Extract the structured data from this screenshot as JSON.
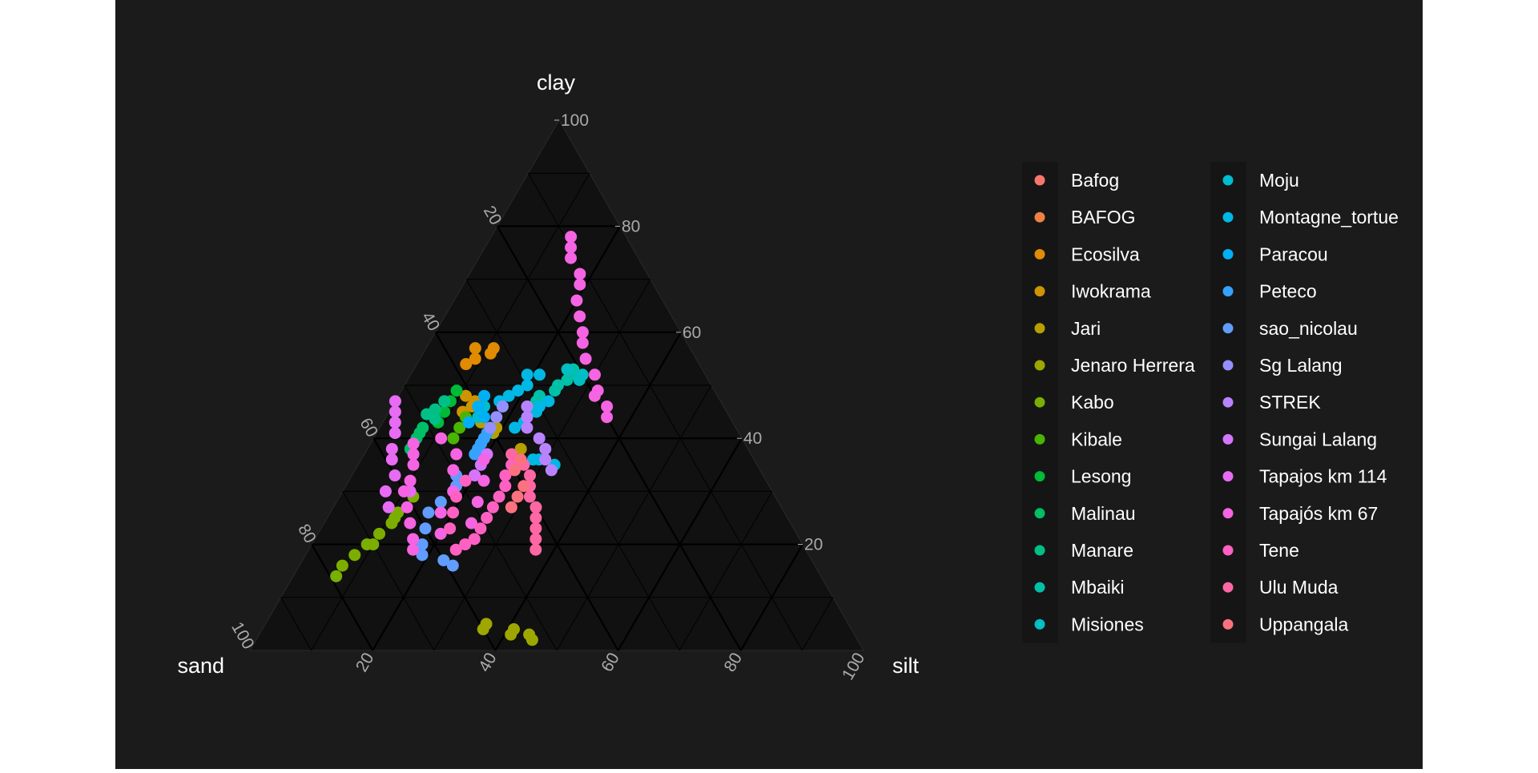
{
  "chart_data": {
    "type": "scatter",
    "subtype": "ternary",
    "axes": {
      "top": "clay",
      "left": "sand",
      "right": "silt"
    },
    "ticks": [
      20,
      40,
      60,
      80,
      100
    ],
    "grid": true,
    "grid_minor_step": 10,
    "legend_position": "right",
    "legend_columns": 2,
    "theme": {
      "background": "#1b1b1b",
      "panel": "#111111",
      "text": "#ffffff",
      "tick_text": "#aaaaaa"
    },
    "series": [
      {
        "name": "Bafog",
        "color": "#F8766D",
        "points": []
      },
      {
        "name": "BAFOG",
        "color": "#EE8044",
        "points": []
      },
      {
        "name": "Ecosilva",
        "color": "#E08B00",
        "points": [
          [
            57,
            35,
            8
          ],
          [
            56,
            33,
            11
          ],
          [
            55,
            36,
            9
          ],
          [
            54,
            38,
            8
          ],
          [
            57,
            32,
            11
          ]
        ]
      },
      {
        "name": "Iwokrama",
        "color": "#CE9500",
        "points": [
          [
            46,
            41,
            13
          ],
          [
            47,
            40,
            13
          ],
          [
            48,
            41,
            11
          ],
          [
            45,
            43,
            12
          ]
        ]
      },
      {
        "name": "Jari",
        "color": "#B79F00",
        "points": [
          [
            38,
            37,
            25
          ],
          [
            41,
            40,
            19
          ],
          [
            39,
            43,
            18
          ],
          [
            40,
            42,
            18
          ],
          [
            42,
            39,
            19
          ],
          [
            43,
            41,
            16
          ]
        ]
      },
      {
        "name": "Jenaro Herrera",
        "color": "#9DA700",
        "points": [
          [
            3,
            53,
            44
          ],
          [
            3,
            56,
            41
          ],
          [
            2,
            53,
            45
          ],
          [
            4,
            55,
            41
          ],
          [
            5,
            59,
            36
          ],
          [
            4,
            60,
            36
          ]
        ]
      },
      {
        "name": "Kabo",
        "color": "#7CAE00",
        "points": [
          [
            14,
            79,
            7
          ],
          [
            16,
            77,
            7
          ],
          [
            18,
            74,
            8
          ],
          [
            20,
            71,
            9
          ],
          [
            22,
            68,
            10
          ],
          [
            24,
            65,
            11
          ],
          [
            26,
            63,
            11
          ],
          [
            29,
            59,
            12
          ],
          [
            25,
            64,
            11
          ],
          [
            20,
            70,
            10
          ]
        ]
      },
      {
        "name": "Kibale",
        "color": "#49B500",
        "points": [
          [
            40,
            47,
            13
          ],
          [
            42,
            45,
            13
          ],
          [
            44,
            43,
            13
          ]
        ]
      },
      {
        "name": "Lesong",
        "color": "#00BA38",
        "points": [
          [
            43,
            48,
            9
          ],
          [
            45,
            46,
            9
          ],
          [
            47,
            44,
            9
          ],
          [
            49,
            42,
            9
          ]
        ]
      },
      {
        "name": "Malinau",
        "color": "#00BE67",
        "points": [
          [
            38,
            55,
            7
          ],
          [
            39,
            54,
            7
          ],
          [
            40,
            53,
            7
          ],
          [
            41,
            52,
            7
          ],
          [
            42,
            51,
            7
          ]
        ]
      },
      {
        "name": "Manare",
        "color": "#00C088",
        "points": [
          [
            49,
            54,
            7
          ],
          [
            48,
            53,
            9
          ],
          [
            50,
            52,
            8
          ],
          [
            47,
            45,
            8
          ]
        ]
      },
      {
        "name": "Mbaiki",
        "color": "#00C1A7",
        "points": [
          [
            46,
            32,
            22
          ],
          [
            47,
            30,
            23
          ],
          [
            48,
            29,
            23
          ],
          [
            49,
            26,
            25
          ],
          [
            50,
            25,
            25
          ],
          [
            51,
            23,
            26
          ],
          [
            52,
            21,
            27
          ],
          [
            53,
            21,
            26
          ]
        ]
      },
      {
        "name": "Misiones",
        "color": "#00BFC4",
        "points": [
          [
            52,
            20,
            28
          ],
          [
            53,
            22,
            25
          ],
          [
            51,
            21,
            28
          ]
        ]
      },
      {
        "name": "Moju",
        "color": "#00BDD0",
        "points": [
          [
            44,
            41,
            15
          ],
          [
            46,
            39,
            15
          ],
          [
            45,
            40,
            15
          ]
        ]
      },
      {
        "name": "Montagne_tortue",
        "color": "#00B8E3",
        "points": [
          [
            47,
            36,
            17
          ],
          [
            48,
            34,
            18
          ],
          [
            49,
            32,
            19
          ],
          [
            50,
            30,
            20
          ],
          [
            52,
            29,
            19
          ],
          [
            52,
            27,
            21
          ],
          [
            42,
            36,
            22
          ],
          [
            43,
            34,
            23
          ],
          [
            44,
            33,
            23
          ],
          [
            45,
            31,
            24
          ],
          [
            46,
            30,
            24
          ],
          [
            47,
            28,
            25
          ],
          [
            36,
            36,
            28
          ],
          [
            36,
            35,
            29
          ],
          [
            35,
            33,
            32
          ]
        ]
      },
      {
        "name": "Paracou",
        "color": "#00B0F6",
        "points": [
          [
            44,
            40,
            16
          ],
          [
            46,
            40,
            14
          ],
          [
            48,
            38,
            14
          ],
          [
            43,
            43,
            14
          ]
        ]
      },
      {
        "name": "Peteco",
        "color": "#35A2FF",
        "points": [
          [
            37,
            45,
            18
          ],
          [
            38,
            44,
            18
          ],
          [
            39,
            43,
            18
          ],
          [
            40,
            42,
            18
          ],
          [
            41,
            41,
            18
          ]
        ]
      },
      {
        "name": "sao_nicolau",
        "color": "#619CFF",
        "points": [
          [
            33,
            50,
            17
          ],
          [
            31,
            51,
            18
          ],
          [
            28,
            55,
            17
          ],
          [
            26,
            58,
            16
          ],
          [
            23,
            60,
            17
          ],
          [
            20,
            62,
            18
          ],
          [
            18,
            63,
            19
          ],
          [
            17,
            60,
            23
          ],
          [
            16,
            59,
            25
          ]
        ]
      },
      {
        "name": "Sg Lalang",
        "color": "#9590FF",
        "points": [
          [
            42,
            40,
            18
          ],
          [
            44,
            38,
            18
          ],
          [
            46,
            36,
            18
          ]
        ]
      },
      {
        "name": "STREK",
        "color": "#B983FF",
        "points": [
          [
            40,
            33,
            27
          ],
          [
            42,
            34,
            24
          ],
          [
            44,
            33,
            23
          ],
          [
            46,
            32,
            22
          ],
          [
            38,
            33,
            29
          ],
          [
            36,
            34,
            30
          ],
          [
            34,
            34,
            32
          ]
        ]
      },
      {
        "name": "Sungai Lalang",
        "color": "#D575FE",
        "points": [
          [
            33,
            47,
            20
          ],
          [
            35,
            45,
            20
          ],
          [
            37,
            43,
            20
          ]
        ]
      },
      {
        "name": "Tapajos km 114",
        "color": "#E76BF3",
        "points": [
          [
            41,
            56,
            3
          ],
          [
            43,
            55,
            2
          ],
          [
            45,
            54,
            1
          ],
          [
            47,
            53,
            0
          ],
          [
            38,
            58,
            4
          ],
          [
            36,
            59,
            5
          ],
          [
            33,
            60,
            7
          ],
          [
            30,
            63,
            7
          ],
          [
            27,
            64,
            9
          ],
          [
            30,
            59,
            11
          ]
        ]
      },
      {
        "name": "Tapajós km 67",
        "color": "#F564E3",
        "points": [
          [
            78,
            9,
            13
          ],
          [
            76,
            10,
            14
          ],
          [
            74,
            11,
            15
          ],
          [
            71,
            11,
            18
          ],
          [
            69,
            12,
            19
          ],
          [
            66,
            14,
            20
          ],
          [
            63,
            15,
            22
          ],
          [
            60,
            16,
            24
          ],
          [
            58,
            17,
            25
          ],
          [
            55,
            18,
            27
          ],
          [
            52,
            18,
            30
          ],
          [
            49,
            19,
            32
          ],
          [
            48,
            20,
            32
          ],
          [
            46,
            19,
            35
          ],
          [
            44,
            20,
            36
          ],
          [
            39,
            54,
            7
          ],
          [
            37,
            55,
            8
          ],
          [
            35,
            56,
            9
          ],
          [
            32,
            58,
            10
          ],
          [
            30,
            60,
            10
          ],
          [
            27,
            61,
            12
          ],
          [
            24,
            62,
            14
          ],
          [
            21,
            63,
            16
          ],
          [
            19,
            64,
            17
          ],
          [
            40,
            49,
            11
          ],
          [
            37,
            48,
            15
          ],
          [
            34,
            50,
            16
          ],
          [
            30,
            52,
            18
          ],
          [
            26,
            56,
            18
          ],
          [
            22,
            58,
            20
          ],
          [
            36,
            44,
            20
          ],
          [
            32,
            46,
            22
          ],
          [
            28,
            49,
            23
          ],
          [
            24,
            52,
            24
          ]
        ]
      },
      {
        "name": "Tene",
        "color": "#FF61C3",
        "points": [
          [
            35,
            40,
            25
          ],
          [
            33,
            42,
            25
          ],
          [
            31,
            43,
            26
          ],
          [
            29,
            45,
            26
          ],
          [
            27,
            47,
            26
          ],
          [
            25,
            49,
            26
          ],
          [
            23,
            51,
            26
          ],
          [
            21,
            53,
            26
          ],
          [
            20,
            55,
            25
          ],
          [
            19,
            57,
            24
          ],
          [
            32,
            49,
            19
          ],
          [
            29,
            52,
            19
          ],
          [
            26,
            54,
            20
          ],
          [
            23,
            56,
            21
          ]
        ]
      },
      {
        "name": "Ulu Muda",
        "color": "#FF67A4",
        "points": [
          [
            37,
            39,
            24
          ],
          [
            35,
            38,
            27
          ],
          [
            33,
            38,
            29
          ],
          [
            31,
            39,
            30
          ],
          [
            29,
            40,
            31
          ],
          [
            27,
            40,
            33
          ],
          [
            25,
            41,
            34
          ],
          [
            23,
            42,
            35
          ],
          [
            21,
            43,
            36
          ],
          [
            19,
            44,
            37
          ]
        ]
      },
      {
        "name": "Uppangala",
        "color": "#FC717F",
        "points": [
          [
            31,
            40,
            29
          ],
          [
            29,
            42,
            29
          ],
          [
            27,
            44,
            29
          ],
          [
            36,
            38,
            26
          ],
          [
            34,
            40,
            26
          ]
        ]
      }
    ]
  }
}
